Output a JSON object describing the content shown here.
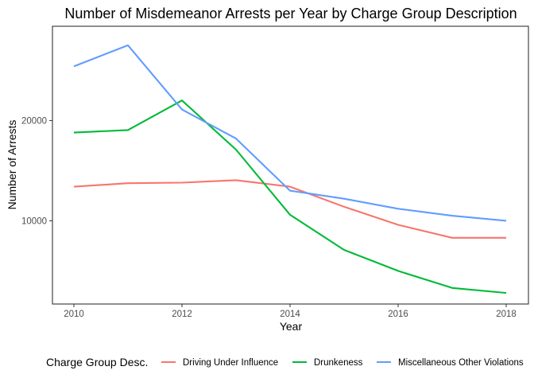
{
  "chart_data": {
    "type": "line",
    "title": "Number of Misdemeanor Arrests per Year by Charge Group Description",
    "xlabel": "Year",
    "ylabel": "Number of Arrests",
    "x": [
      2010,
      2011,
      2012,
      2013,
      2014,
      2015,
      2016,
      2017,
      2018
    ],
    "x_ticks": [
      2010,
      2012,
      2014,
      2016,
      2018
    ],
    "y_ticks": [
      10000,
      20000
    ],
    "xlim": [
      2010,
      2018
    ],
    "ylim": [
      1700,
      29400
    ],
    "grid": false,
    "legend": {
      "title": "Charge Group Desc.",
      "position": "bottom"
    },
    "series": [
      {
        "name": "Driving Under Influence",
        "color": "#F8766D",
        "values": [
          13400,
          13750,
          13800,
          14050,
          13400,
          11400,
          9600,
          8300,
          8300
        ]
      },
      {
        "name": "Drunkeness",
        "color": "#00BA38",
        "values": [
          18800,
          19050,
          22000,
          17100,
          10600,
          7100,
          5000,
          3300,
          2800
        ]
      },
      {
        "name": "Miscellaneous Other Violations",
        "color": "#619CFF",
        "values": [
          25400,
          27500,
          21100,
          18200,
          13000,
          12200,
          11200,
          10500,
          10000
        ]
      }
    ]
  }
}
